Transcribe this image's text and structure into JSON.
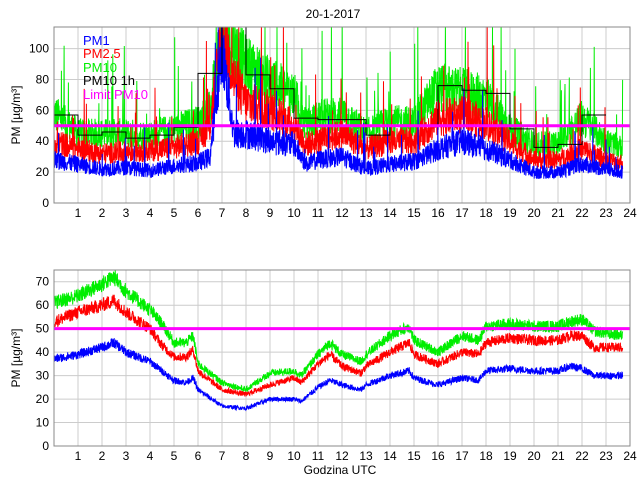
{
  "chart_data": [
    {
      "type": "line",
      "title": "20-1-2017",
      "xlabel": "",
      "ylabel": "PM [µg/m³]",
      "xlim": [
        0,
        24
      ],
      "ylim": [
        0,
        114
      ],
      "xticks": [
        1,
        2,
        3,
        4,
        5,
        6,
        7,
        8,
        9,
        10,
        11,
        12,
        13,
        14,
        15,
        16,
        17,
        18,
        19,
        20,
        21,
        22,
        23,
        24
      ],
      "yticks": [
        0,
        20,
        40,
        60,
        80,
        100
      ],
      "grid": true,
      "legend_position": "top-left",
      "x": [
        0,
        1,
        2,
        3,
        4,
        5,
        6,
        6.5,
        7,
        7.5,
        8,
        9,
        10,
        10.5,
        11,
        12,
        13,
        14,
        15,
        16,
        17,
        18,
        19,
        20,
        21,
        22,
        23,
        23.7
      ],
      "series": [
        {
          "name": "PM1",
          "color": "#0000ff",
          "values": [
            28,
            25,
            22,
            23,
            21,
            24,
            26,
            30,
            100,
            45,
            45,
            40,
            38,
            25,
            28,
            30,
            22,
            25,
            27,
            35,
            40,
            35,
            28,
            20,
            20,
            25,
            22,
            20
          ]
        },
        {
          "name": "PM2.5",
          "color": "#ff0000",
          "values": [
            40,
            35,
            32,
            33,
            34,
            36,
            40,
            50,
            114,
            80,
            65,
            60,
            50,
            38,
            40,
            45,
            35,
            40,
            40,
            55,
            57,
            52,
            40,
            28,
            28,
            35,
            28,
            26
          ]
        },
        {
          "name": "PM10",
          "color": "#00ee00",
          "values": [
            58,
            45,
            45,
            45,
            44,
            48,
            52,
            60,
            114,
            100,
            90,
            78,
            70,
            50,
            55,
            58,
            45,
            52,
            52,
            75,
            72,
            68,
            48,
            38,
            38,
            55,
            40,
            35
          ]
        }
      ],
      "step_series": {
        "name": "PM10 1h",
        "color": "#000000",
        "hours": [
          0,
          1,
          2,
          3,
          4,
          5,
          6,
          7,
          8,
          9,
          10,
          11,
          12,
          13,
          14,
          15,
          16,
          17,
          18,
          19,
          20,
          21,
          22
        ],
        "values": [
          57,
          44,
          46,
          42,
          44,
          49,
          84,
          114,
          83,
          74,
          55,
          54,
          54,
          44,
          50,
          50,
          76,
          73,
          71,
          48,
          36,
          38,
          57
        ]
      },
      "limit": {
        "name": "Limit PM10",
        "color": "#ff00ff",
        "value": 50
      }
    },
    {
      "type": "line",
      "title": "",
      "xlabel": "Godzina UTC",
      "ylabel": "PM [µg/m³]",
      "xlim": [
        0,
        24
      ],
      "ylim": [
        0,
        75
      ],
      "xticks": [
        1,
        2,
        3,
        4,
        5,
        6,
        7,
        8,
        9,
        10,
        11,
        12,
        13,
        14,
        15,
        16,
        17,
        18,
        19,
        20,
        21,
        22,
        23,
        24
      ],
      "yticks": [
        0,
        10,
        20,
        30,
        40,
        50,
        60,
        70
      ],
      "grid": true,
      "x": [
        0,
        1,
        2,
        2.5,
        3,
        4,
        4.5,
        5,
        5.5,
        5.8,
        6,
        7,
        8,
        9,
        10,
        10.3,
        11,
        11.5,
        12,
        12.8,
        13,
        14,
        14.8,
        15,
        16,
        17,
        17.7,
        18,
        19,
        20,
        21,
        21.5,
        22,
        22.5,
        23,
        23.7
      ],
      "series": [
        {
          "name": "PM1",
          "color": "#0000ff",
          "values": [
            37,
            39,
            42,
            44,
            40,
            36,
            32,
            28,
            27,
            29,
            24,
            17,
            16,
            20,
            20,
            19,
            25,
            28,
            26,
            24,
            26,
            30,
            32,
            29,
            26,
            29,
            28,
            32,
            33,
            32,
            32,
            34,
            33,
            30,
            30,
            30
          ]
        },
        {
          "name": "PM2.5",
          "color": "#ff0000",
          "values": [
            53,
            57,
            60,
            62,
            57,
            50,
            43,
            38,
            38,
            41,
            32,
            24,
            22,
            26,
            29,
            27,
            35,
            39,
            34,
            31,
            34,
            40,
            44,
            39,
            35,
            40,
            39,
            44,
            46,
            45,
            45,
            47,
            47,
            42,
            42,
            42
          ]
        },
        {
          "name": "PM10",
          "color": "#00ee00",
          "values": [
            61,
            64,
            69,
            72,
            66,
            58,
            52,
            44,
            44,
            47,
            35,
            27,
            24,
            31,
            32,
            30,
            39,
            44,
            39,
            36,
            39,
            47,
            51,
            45,
            40,
            47,
            45,
            51,
            52,
            51,
            51,
            53,
            54,
            49,
            48,
            47
          ]
        }
      ],
      "limit": {
        "name": "Limit PM10",
        "color": "#ff00ff",
        "value": 50
      }
    }
  ]
}
